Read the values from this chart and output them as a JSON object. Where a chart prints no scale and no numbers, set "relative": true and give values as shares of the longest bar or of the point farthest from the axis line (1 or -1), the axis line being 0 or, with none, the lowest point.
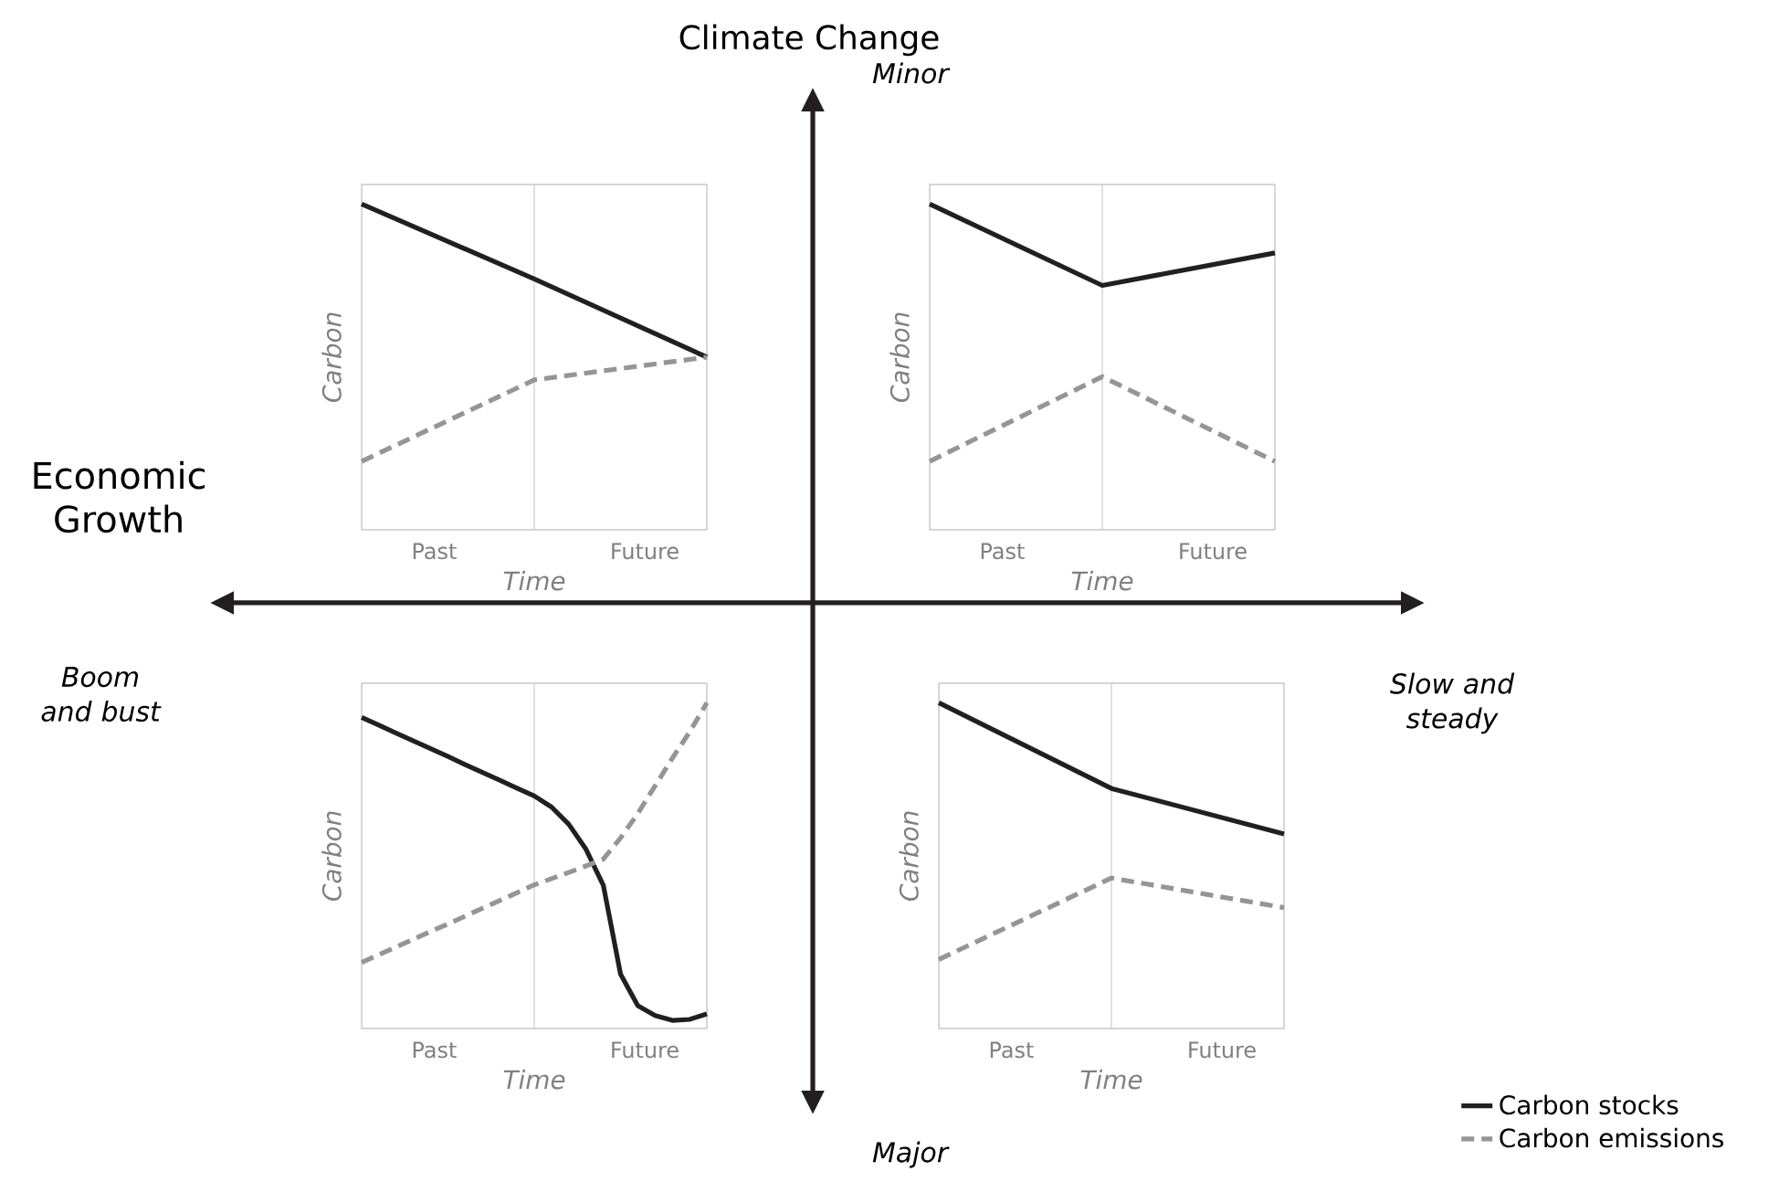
{
  "chart_data": [
    {
      "type": "line",
      "relative": true,
      "xlabel": "Time",
      "ylabel": "Carbon",
      "categories": [
        null,
        null,
        null
      ],
      "tick_labels": false,
      "annotations": [
        "Past",
        "Future"
      ],
      "series": [
        {
          "color": "#231f20",
          "line_style": "solid",
          "values": [
            1,
            0.77,
            0.53
          ]
        },
        {
          "color": "#939598",
          "line_style": "dashed",
          "values": [
            0.21,
            0.46,
            0.53
          ]
        }
      ]
    },
    {
      "type": "line",
      "relative": true,
      "xlabel": "Time",
      "ylabel": "Carbon",
      "categories": [
        null,
        null,
        null
      ],
      "tick_labels": false,
      "annotations": [
        "Past",
        "Future"
      ],
      "series": [
        {
          "color": "#231f20",
          "line_style": "solid",
          "values": [
            1,
            0.75,
            0.85
          ]
        },
        {
          "color": "#939598",
          "line_style": "dashed",
          "values": [
            0.21,
            0.47,
            0.21
          ]
        }
      ]
    },
    {
      "type": "line",
      "relative": true,
      "xlabel": "Time",
      "ylabel": "Carbon",
      "categories": [
        null,
        null,
        null,
        null,
        null,
        null,
        null,
        null,
        null,
        null,
        null,
        null,
        null,
        null,
        null,
        null,
        null,
        null,
        null,
        null,
        null
      ],
      "tick_labels": false,
      "annotations": [
        "Past",
        "Future"
      ],
      "series": [
        {
          "color": "#231f20",
          "line_style": "solid",
          "values": [
            0.955,
            0.931,
            0.907,
            0.883,
            0.859,
            0.835,
            0.81,
            0.786,
            0.762,
            0.738,
            0.714,
            0.68,
            0.627,
            0.55,
            0.44,
            0.167,
            0.07,
            0.04,
            0.025,
            0.028,
            0.045
          ]
        },
        {
          "color": "#939598",
          "line_style": "dashed",
          "values": [
            0.203,
            0.227,
            0.25,
            0.274,
            0.298,
            0.321,
            0.345,
            0.369,
            0.393,
            0.417,
            0.441,
            0.46,
            0.479,
            0.499,
            0.52,
            0.585,
            0.66,
            0.745,
            0.83,
            0.91,
            1
          ]
        }
      ]
    },
    {
      "type": "line",
      "relative": true,
      "xlabel": "Time",
      "ylabel": "Carbon",
      "categories": [
        null,
        null,
        null
      ],
      "tick_labels": false,
      "annotations": [
        "Past",
        "Future"
      ],
      "legend": "bottom right",
      "series": [
        {
          "name": "Carbon stocks",
          "color": "#231f20",
          "line_style": "solid",
          "values": [
            1,
            0.737,
            0.597
          ]
        },
        {
          "name": "Carbon emissions",
          "color": "#939598",
          "line_style": "dashed",
          "values": [
            0.212,
            0.462,
            0.371
          ]
        }
      ]
    },
    {
      "type": "other",
      "ylabel": "Climate Change",
      "xlabel": "Economic Growth",
      "annotations": [
        "Minor",
        "Major",
        "Boom and bust",
        "Slow and steady"
      ]
    }
  ]
}
